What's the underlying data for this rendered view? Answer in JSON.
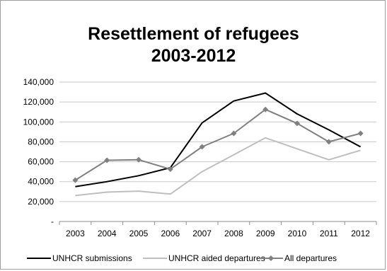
{
  "chart_data": {
    "type": "line",
    "title_lines": [
      "Resettlement of refugees",
      "2003-2012"
    ],
    "xlabel": "",
    "ylabel": "",
    "x": [
      "2003",
      "2004",
      "2005",
      "2006",
      "2007",
      "2008",
      "2009",
      "2010",
      "2011",
      "2012"
    ],
    "ylim": [
      0,
      140000
    ],
    "yticks": [
      0,
      20000,
      40000,
      60000,
      80000,
      100000,
      120000,
      140000
    ],
    "ytick_labels": [
      "-",
      "20,000",
      "40,000",
      "60,000",
      "80,000",
      "100,000",
      "120,000",
      "140,000"
    ],
    "grid": "horizontal",
    "legend_position": "bottom",
    "series": [
      {
        "name": "UNHCR submissions",
        "color": "#000000",
        "marker": "none",
        "values": [
          35000,
          40000,
          46000,
          54000,
          99000,
          121000,
          129000,
          108000,
          92000,
          75000
        ]
      },
      {
        "name": "UNHCR aided departures",
        "color": "#bfbfbf",
        "marker": "none",
        "values": [
          26000,
          29500,
          30500,
          27500,
          50000,
          67000,
          84000,
          73000,
          62000,
          71500
        ]
      },
      {
        "name": "All departures",
        "color": "#808080",
        "marker": "diamond",
        "values": [
          41500,
          61500,
          62000,
          52500,
          75000,
          88500,
          112500,
          98500,
          80000,
          88500
        ]
      }
    ]
  }
}
